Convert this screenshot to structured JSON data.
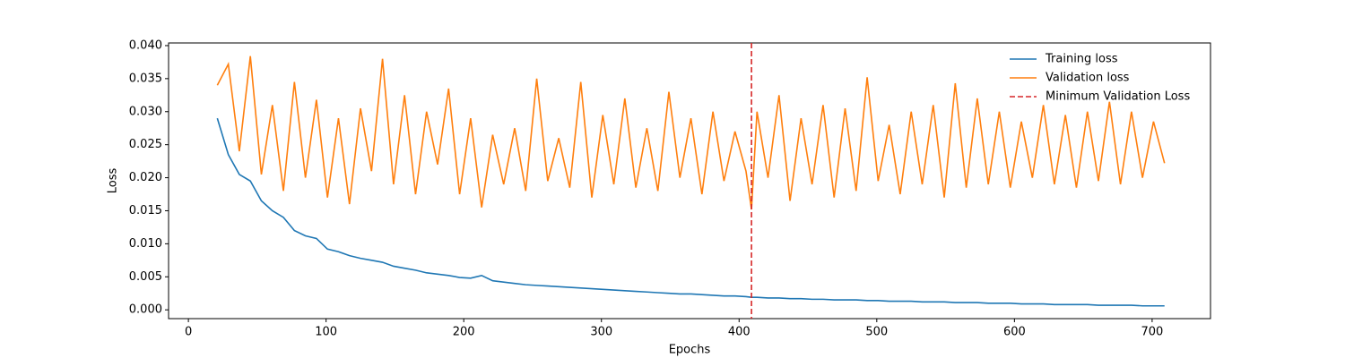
{
  "chart_data": {
    "type": "line",
    "x_label": "Epochs",
    "y_label": "Loss",
    "x": [
      21,
      29,
      37,
      45,
      53,
      61,
      69,
      77,
      85,
      93,
      101,
      109,
      117,
      125,
      133,
      141,
      149,
      157,
      165,
      173,
      181,
      189,
      197,
      205,
      213,
      221,
      229,
      237,
      245,
      253,
      261,
      269,
      277,
      285,
      293,
      301,
      309,
      317,
      325,
      333,
      341,
      349,
      357,
      365,
      373,
      381,
      389,
      397,
      405,
      409,
      413,
      421,
      429,
      437,
      445,
      453,
      461,
      469,
      477,
      485,
      493,
      501,
      509,
      517,
      525,
      533,
      541,
      549,
      557,
      565,
      573,
      581,
      589,
      597,
      605,
      613,
      621,
      629,
      637,
      645,
      653,
      661,
      669,
      677,
      685,
      693,
      701,
      709
    ],
    "series": [
      {
        "name": "Training loss",
        "color": "#1f77b4",
        "values": [
          0.029,
          0.0235,
          0.0205,
          0.0195,
          0.0165,
          0.015,
          0.014,
          0.012,
          0.0112,
          0.0108,
          0.0092,
          0.0088,
          0.0082,
          0.0078,
          0.0075,
          0.0072,
          0.0066,
          0.0063,
          0.006,
          0.0056,
          0.0054,
          0.0052,
          0.0049,
          0.0048,
          0.0052,
          0.0044,
          0.0042,
          0.004,
          0.0038,
          0.0037,
          0.0036,
          0.0035,
          0.0034,
          0.0033,
          0.0032,
          0.0031,
          0.003,
          0.0029,
          0.0028,
          0.0027,
          0.0026,
          0.0025,
          0.0024,
          0.0024,
          0.0023,
          0.0022,
          0.0021,
          0.0021,
          0.002,
          0.0019,
          0.0019,
          0.0018,
          0.0018,
          0.0017,
          0.0017,
          0.0016,
          0.0016,
          0.0015,
          0.0015,
          0.0015,
          0.0014,
          0.0014,
          0.0013,
          0.0013,
          0.0013,
          0.0012,
          0.0012,
          0.0012,
          0.0011,
          0.0011,
          0.0011,
          0.001,
          0.001,
          0.001,
          0.0009,
          0.0009,
          0.0009,
          0.0008,
          0.0008,
          0.0008,
          0.0008,
          0.0007,
          0.0007,
          0.0007,
          0.0007,
          0.0006,
          0.0006,
          0.0006
        ]
      },
      {
        "name": "Validation loss",
        "color": "#ff7f0e",
        "values": [
          0.034,
          0.0372,
          0.024,
          0.0384,
          0.0205,
          0.031,
          0.018,
          0.0345,
          0.02,
          0.0318,
          0.017,
          0.029,
          0.016,
          0.0305,
          0.021,
          0.038,
          0.019,
          0.0325,
          0.0175,
          0.03,
          0.022,
          0.0335,
          0.0175,
          0.029,
          0.0155,
          0.0265,
          0.019,
          0.0275,
          0.018,
          0.035,
          0.0195,
          0.026,
          0.0185,
          0.0345,
          0.017,
          0.0295,
          0.019,
          0.032,
          0.0185,
          0.0275,
          0.018,
          0.033,
          0.02,
          0.029,
          0.0175,
          0.03,
          0.0195,
          0.027,
          0.021,
          0.0152,
          0.03,
          0.02,
          0.0325,
          0.0165,
          0.029,
          0.019,
          0.031,
          0.017,
          0.0305,
          0.018,
          0.0352,
          0.0195,
          0.028,
          0.0175,
          0.03,
          0.019,
          0.031,
          0.017,
          0.0343,
          0.0185,
          0.032,
          0.019,
          0.03,
          0.0185,
          0.0285,
          0.02,
          0.031,
          0.019,
          0.0295,
          0.0185,
          0.03,
          0.0195,
          0.0315,
          0.019,
          0.03,
          0.02,
          0.0285,
          0.0222
        ]
      }
    ],
    "vlines": [
      {
        "name": "Minimum Validation Loss",
        "x": 409,
        "color": "#d62728",
        "dashed": true
      }
    ],
    "xlim": [
      -14.4,
      742.4
    ],
    "xticks": [
      0,
      100,
      200,
      300,
      400,
      500,
      600,
      700
    ],
    "ylim": [
      -0.00133,
      0.0404
    ],
    "yticks": [
      {
        "value": 0,
        "label": "0.000"
      },
      0.005,
      {
        "value": 0.01,
        "label": "0.010"
      },
      0.015,
      {
        "value": 0.02,
        "label": "0.020"
      },
      0.025,
      {
        "value": 0.03,
        "label": "0.030"
      },
      0.035,
      {
        "value": 0.04,
        "label": "0.040"
      }
    ],
    "legend": "upper right",
    "grid": false
  }
}
